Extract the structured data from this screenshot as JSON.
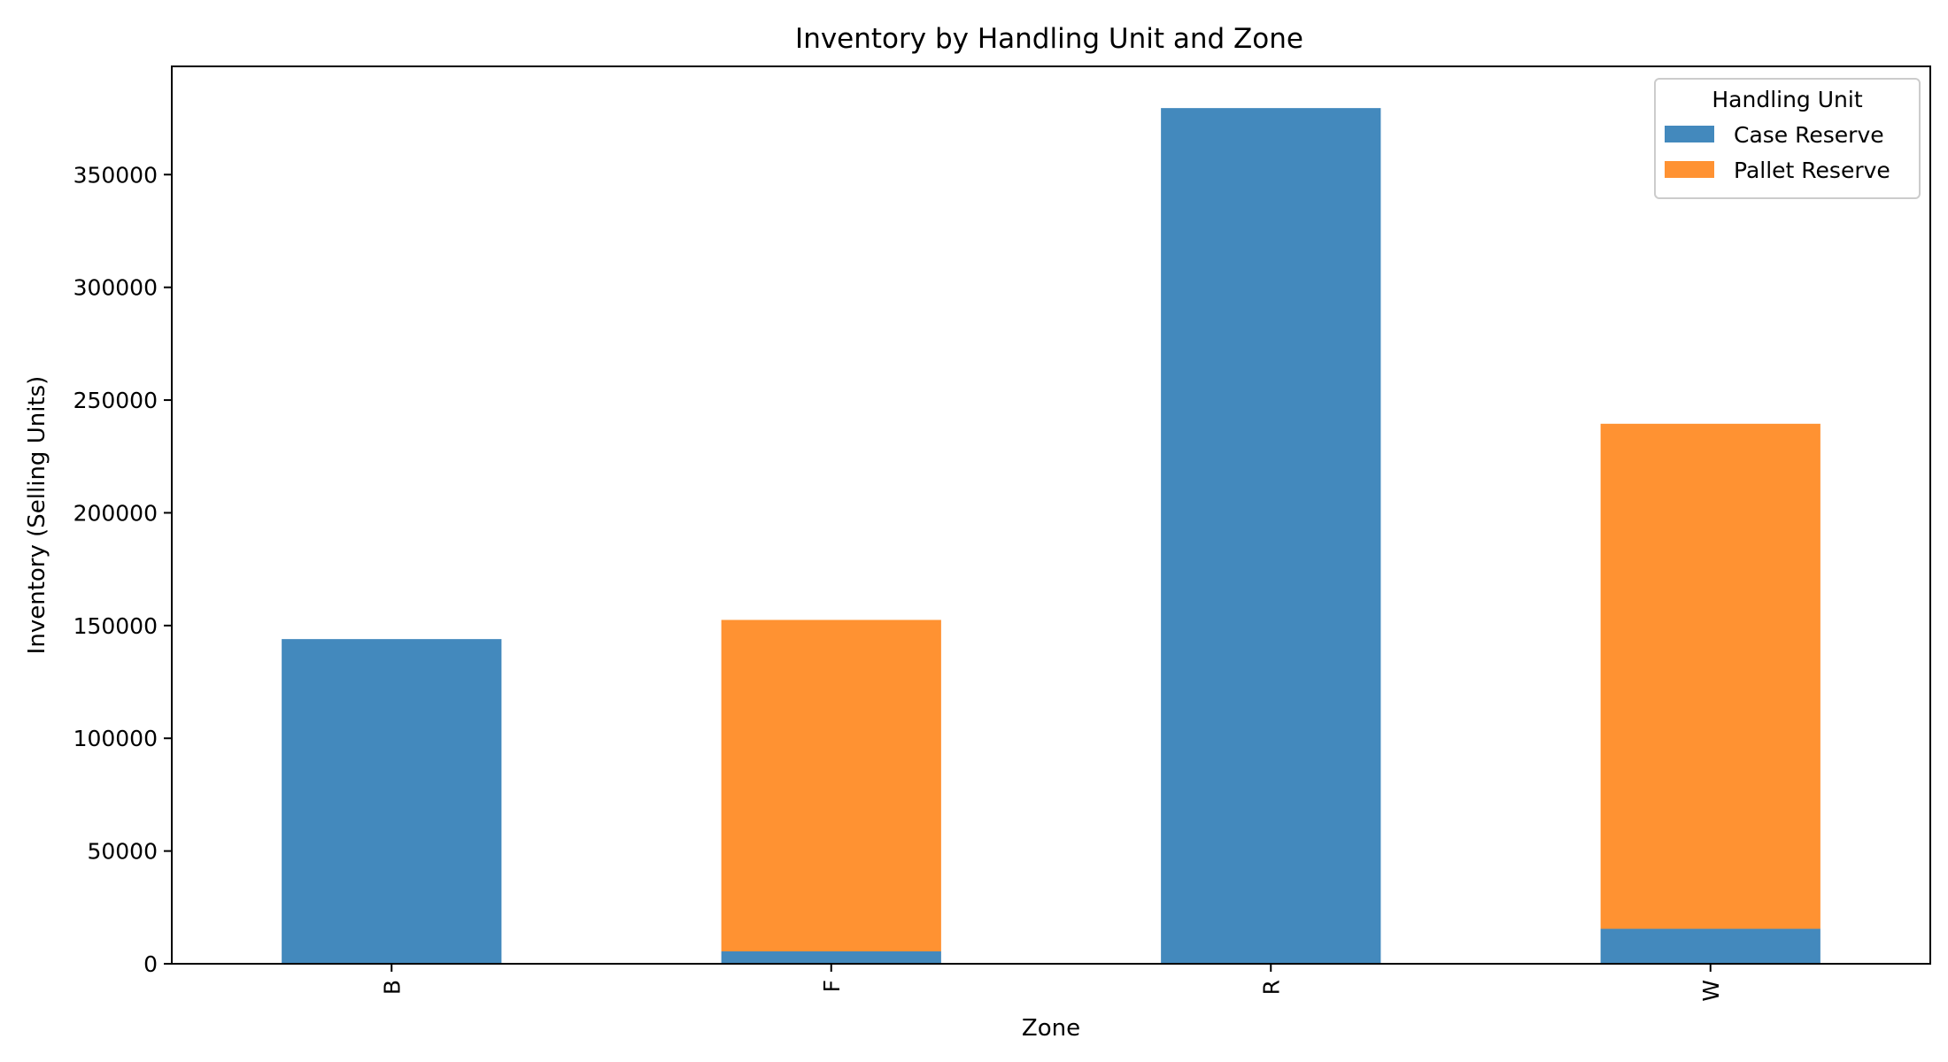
{
  "chart_data": {
    "type": "bar",
    "stacked": true,
    "title": "Inventory by Handling Unit and Zone",
    "xlabel": "Zone",
    "ylabel": "Inventory (Selling Units)",
    "categories": [
      "B",
      "F",
      "R",
      "W"
    ],
    "series": [
      {
        "name": "Case Reserve",
        "color": "#4389BD",
        "values": [
          144000,
          5500,
          379500,
          15500
        ]
      },
      {
        "name": "Pallet Reserve",
        "color": "#FF9232",
        "values": [
          0,
          147000,
          0,
          224000
        ]
      }
    ],
    "ylim": [
      0,
      398000
    ],
    "yticks": [
      0,
      50000,
      100000,
      150000,
      200000,
      250000,
      300000,
      350000
    ],
    "ytick_labels": [
      "0",
      "50000",
      "100000",
      "150000",
      "200000",
      "250000",
      "300000",
      "350000"
    ],
    "grid": false,
    "legend": {
      "title": "Handling Unit",
      "position": "top-right"
    }
  }
}
